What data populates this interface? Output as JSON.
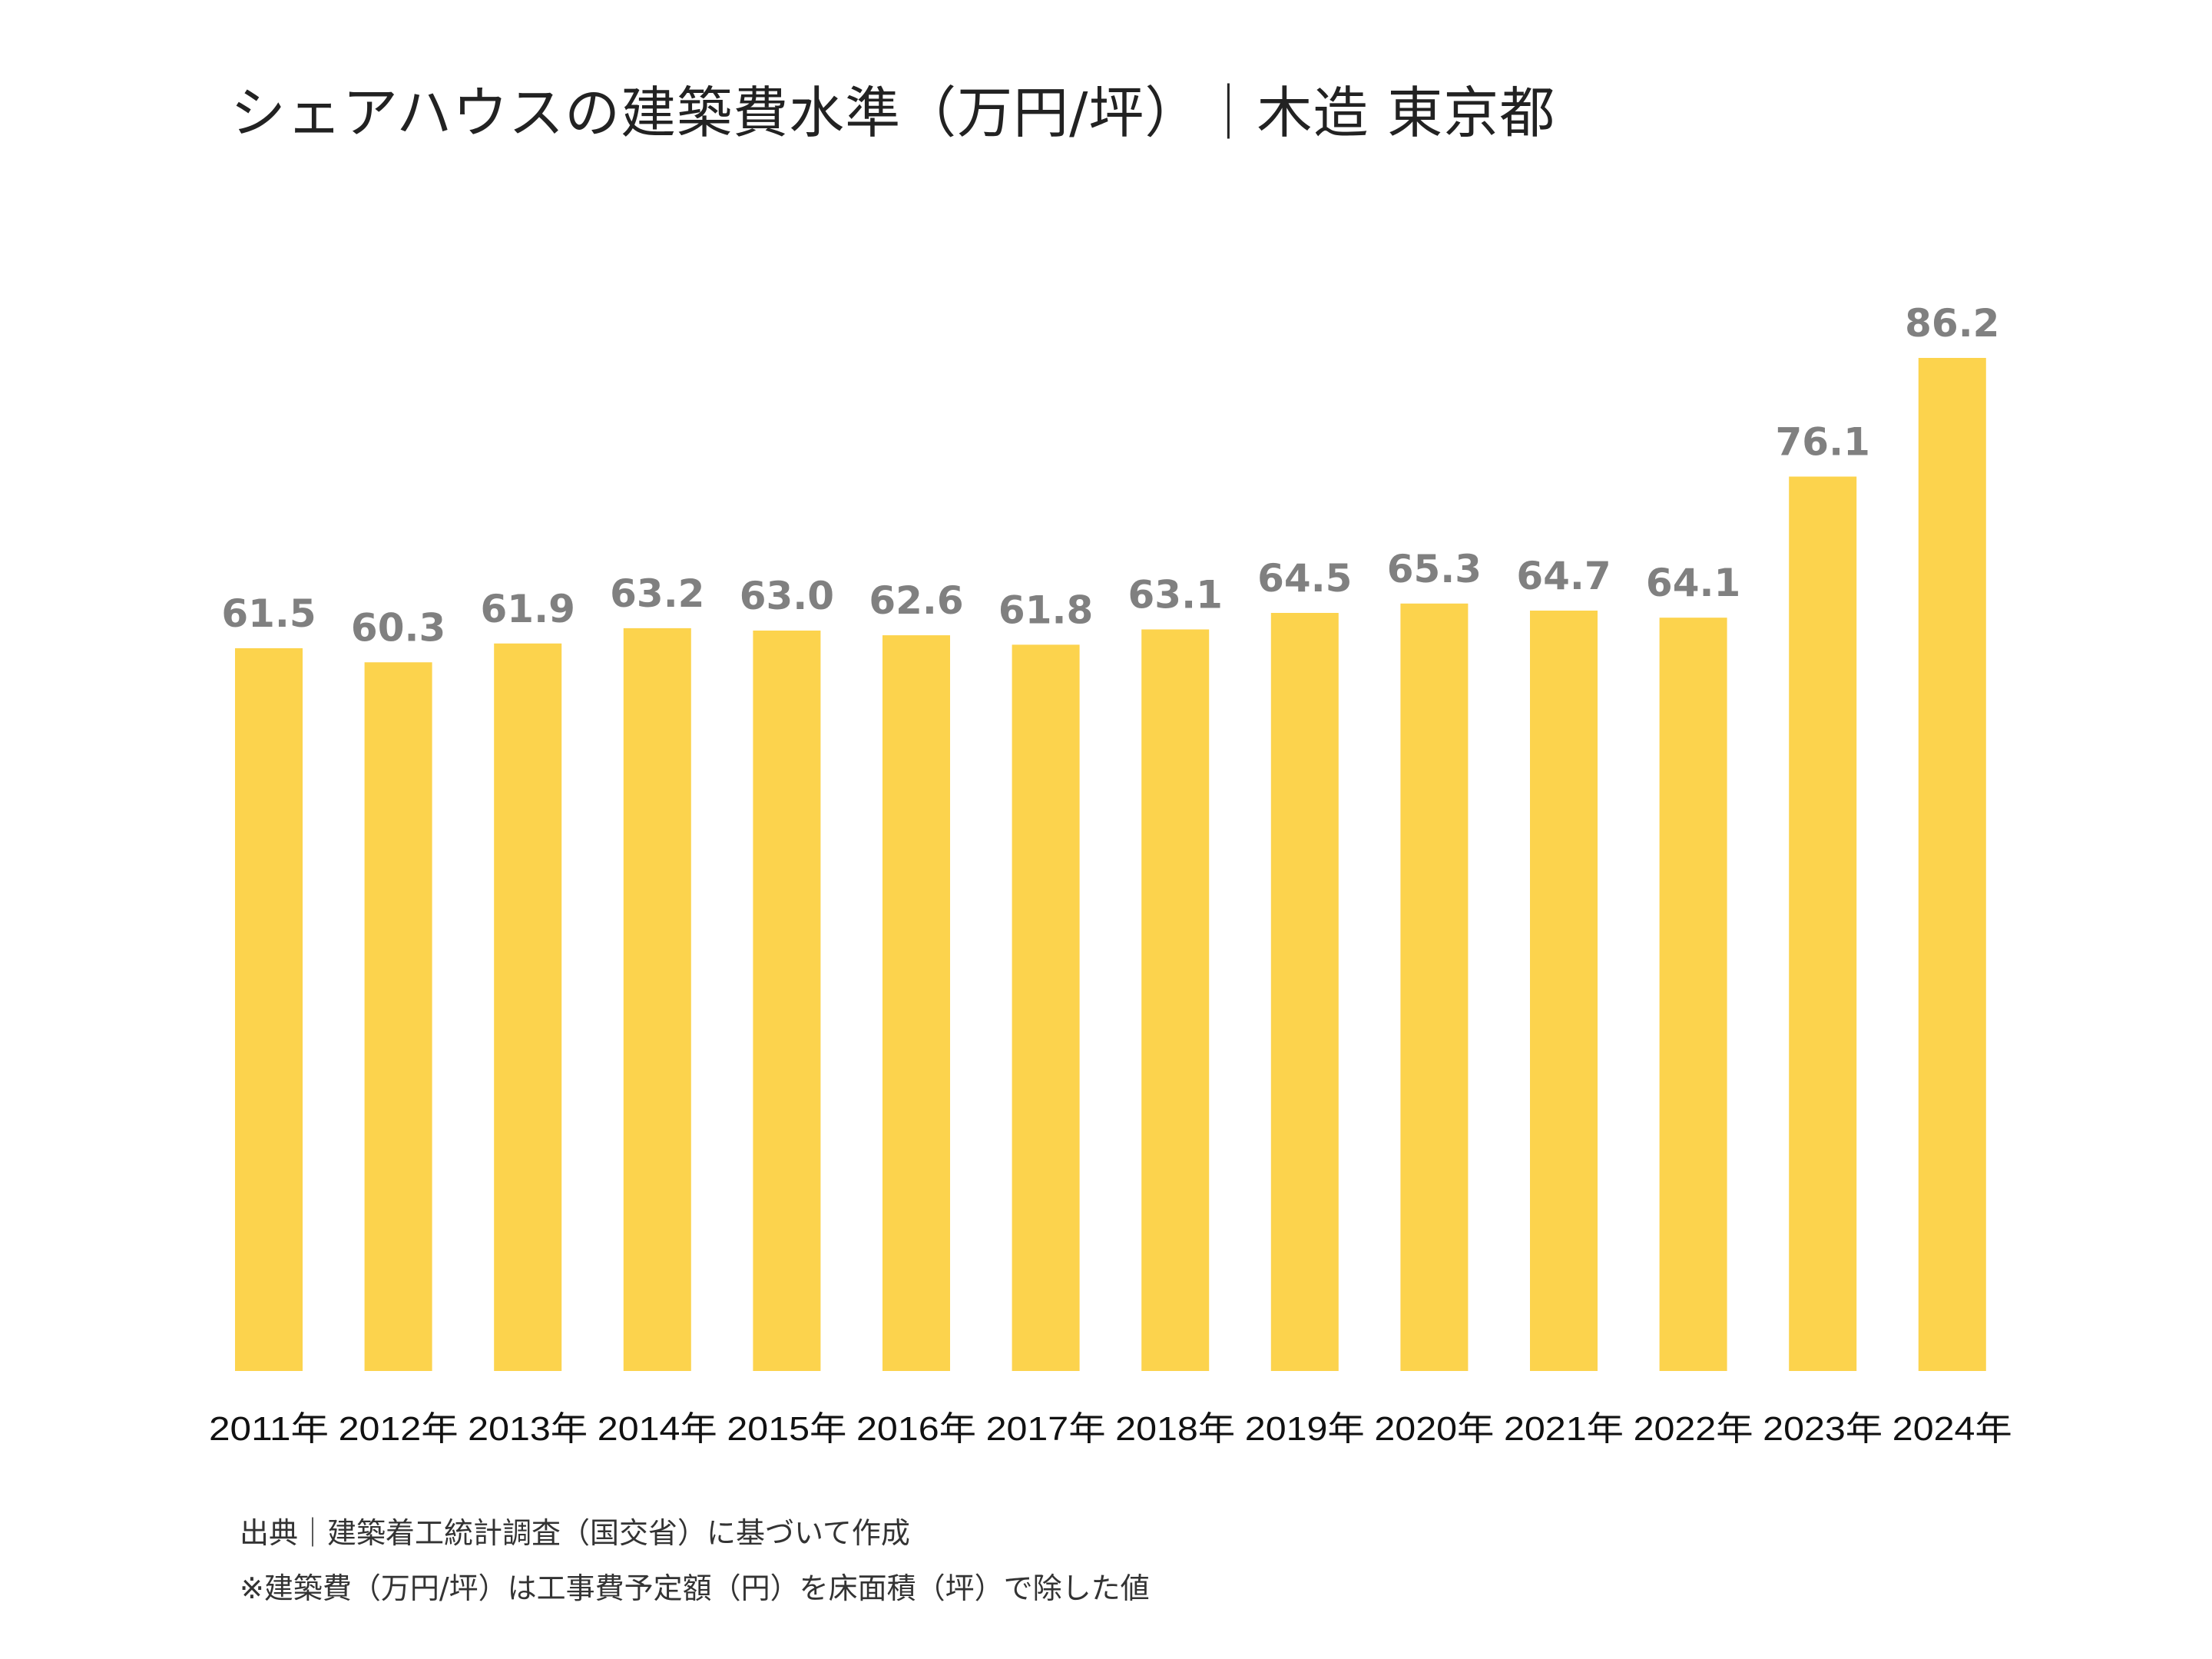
{
  "title": "シェアハウスの建築費水準（万円/坪）｜木造 東京都",
  "colors": {
    "bar": "#FCD34D",
    "value_label": "#808080",
    "axis_label": "#111111"
  },
  "chart_data": {
    "type": "bar",
    "title": "シェアハウスの建築費水準（万円/坪）｜木造 東京都",
    "categories": [
      "2011年",
      "2012年",
      "2013年",
      "2014年",
      "2015年",
      "2016年",
      "2017年",
      "2018年",
      "2019年",
      "2020年",
      "2021年",
      "2022年",
      "2023年",
      "2024年"
    ],
    "values": [
      61.5,
      60.3,
      61.9,
      63.2,
      63.0,
      62.6,
      61.8,
      63.1,
      64.5,
      65.3,
      64.7,
      64.1,
      76.1,
      86.2
    ],
    "value_labels": [
      "61.5",
      "60.3",
      "61.9",
      "63.2",
      "63.0",
      "62.6",
      "61.8",
      "63.1",
      "64.5",
      "65.3",
      "64.7",
      "64.1",
      "76.1",
      "86.2"
    ],
    "xlabel": "",
    "ylabel": "",
    "ylim": [
      0,
      86.2
    ],
    "grid": false,
    "legend": "none"
  },
  "footnotes": {
    "source": "出典｜建築着工統計調査（国交省）に基づいて作成",
    "note": "※建築費（万円/坪）は工事費予定額（円）を床面積（坪）で除した値"
  }
}
